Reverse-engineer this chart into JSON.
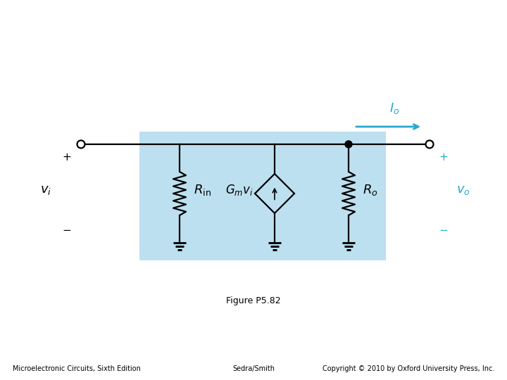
{
  "bg_color": "#ffffff",
  "blue_box_color": "#bde0f0",
  "line_color": "#000000",
  "cyan_color": "#29a8cc",
  "title": "Figure P5.82",
  "footer_left": "Microelectronic Circuits, Sixth Edition",
  "footer_center": "Sedra/Smith",
  "footer_right": "Copyright © 2010 by Oxford University Press, Inc.",
  "label_vi": "$v_i$",
  "label_vo": "$v_o$",
  "label_Rin": "$R_\\mathrm{in}$",
  "label_Ro": "$R_o$",
  "label_Gmvi": "$G_m v_i$",
  "label_Io": "$I_o$"
}
